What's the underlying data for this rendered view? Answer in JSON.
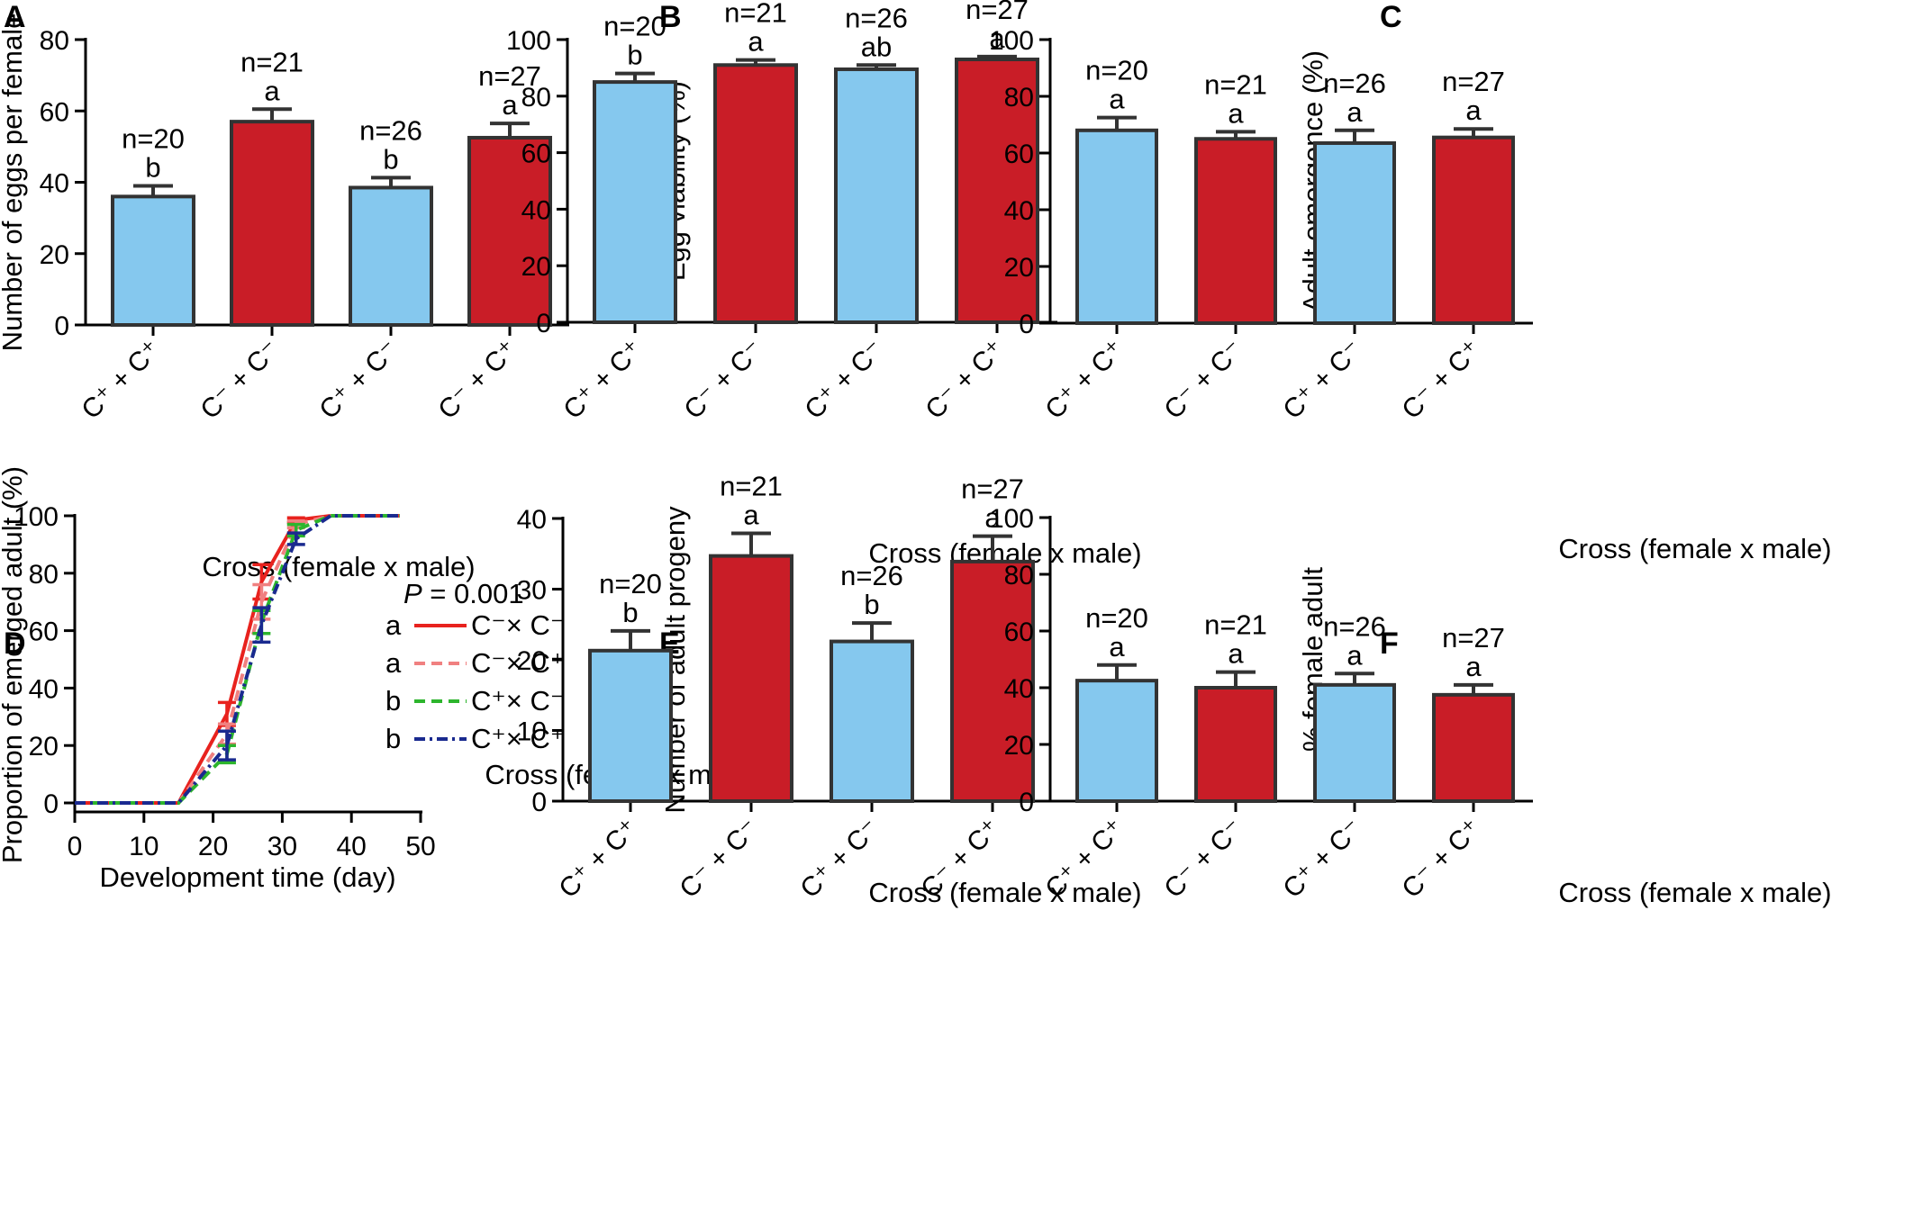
{
  "colors": {
    "blue": "#85C8EE",
    "red": "#C91D27",
    "series_a": "#E8221E",
    "series_b": "#F08080",
    "series_c": "#2DB52D",
    "series_d": "#1A2A8F"
  },
  "chart_data": [
    {
      "panel": "A",
      "type": "bar",
      "ylabel": "Number of eggs per female",
      "xlabel": "Cross (female x male)",
      "ylim": [
        0,
        80
      ],
      "yticks": [
        0,
        20,
        40,
        60,
        80
      ],
      "categories": [
        "C⁺ + C⁺",
        "C⁻ + C⁻",
        "C⁺ + C⁻",
        "C⁻ + C⁺"
      ],
      "values": [
        36,
        57,
        38.5,
        52.5
      ],
      "errors": [
        3,
        3.5,
        2.8,
        4
      ],
      "n_labels": [
        "n=20",
        "n=21",
        "n=26",
        "n=27"
      ],
      "letters": [
        "b",
        "a",
        "b",
        "a"
      ],
      "bar_colors": [
        "blue",
        "red",
        "blue",
        "red"
      ]
    },
    {
      "panel": "B",
      "type": "bar",
      "ylabel": "Egg viability (%)",
      "xlabel": "Cross (female x male)",
      "ylim": [
        0,
        100
      ],
      "yticks": [
        0,
        20,
        40,
        60,
        80,
        100
      ],
      "categories": [
        "C⁺ + C⁺",
        "C⁻ + C⁻",
        "C⁺ + C⁻",
        "C⁻ + C⁺"
      ],
      "values": [
        85,
        91,
        89.5,
        93
      ],
      "errors": [
        3,
        1.8,
        1.5,
        1
      ],
      "n_labels": [
        "n=20",
        "n=21",
        "n=26",
        "n=27"
      ],
      "letters": [
        "b",
        "a",
        "ab",
        "a"
      ],
      "bar_colors": [
        "blue",
        "red",
        "blue",
        "red"
      ]
    },
    {
      "panel": "C",
      "type": "bar",
      "ylabel": "Adult emergence (%)",
      "xlabel": "Cross (female x male)",
      "ylim": [
        0,
        100
      ],
      "yticks": [
        0,
        20,
        40,
        60,
        80,
        100
      ],
      "categories": [
        "C⁺ + C⁺",
        "C⁻ + C⁻",
        "C⁺ + C⁻",
        "C⁻ + C⁺"
      ],
      "values": [
        68,
        65,
        63.5,
        65.5
      ],
      "errors": [
        4.5,
        2.5,
        4.5,
        3
      ],
      "n_labels": [
        "n=20",
        "n=21",
        "n=26",
        "n=27"
      ],
      "letters": [
        "a",
        "a",
        "a",
        "a"
      ],
      "bar_colors": [
        "blue",
        "red",
        "blue",
        "red"
      ]
    },
    {
      "panel": "D",
      "type": "line",
      "ylabel": "Proportion of emerged adult (%)",
      "xlabel": "Development time (day)",
      "xlim": [
        0,
        50
      ],
      "ylim": [
        0,
        100
      ],
      "xticks": [
        0,
        10,
        20,
        30,
        40,
        50
      ],
      "yticks": [
        0,
        20,
        40,
        60,
        80,
        100
      ],
      "annotation": "P = 0.001",
      "annotation_p": "P",
      "annotation_rest": "= 0.001",
      "legend_title": "Cross (female x male)",
      "series": [
        {
          "name": "C⁻× C⁻",
          "letter": "a",
          "color": "series_a",
          "dash": "solid",
          "x": [
            0,
            15,
            22,
            27,
            32,
            37,
            47
          ],
          "y": [
            0,
            0,
            31,
            77,
            98.5,
            100,
            100
          ],
          "err": [
            0,
            0,
            4,
            6,
            0.8,
            0,
            0
          ]
        },
        {
          "name": "C⁻× C⁺",
          "letter": "a",
          "color": "series_b",
          "dash": "dashed",
          "x": [
            0,
            15,
            22,
            27,
            32,
            37,
            47
          ],
          "y": [
            0,
            0,
            24,
            70,
            97,
            100,
            100
          ],
          "err": [
            0,
            0,
            3.5,
            6,
            1.2,
            0,
            0
          ]
        },
        {
          "name": "C⁺× C⁻",
          "letter": "b",
          "color": "series_c",
          "dash": "dashed",
          "x": [
            0,
            15,
            22,
            27,
            32,
            37,
            47
          ],
          "y": [
            0,
            0,
            17,
            63,
            95,
            100,
            100
          ],
          "err": [
            0,
            0,
            3,
            4,
            2,
            0,
            0
          ]
        },
        {
          "name": "C⁺× C⁺",
          "letter": "b",
          "color": "series_d",
          "dash": "dashdot",
          "x": [
            0,
            15,
            22,
            27,
            32,
            37,
            47
          ],
          "y": [
            0,
            0,
            20,
            62,
            92,
            100,
            100
          ],
          "err": [
            0,
            0,
            5,
            6,
            2,
            0,
            0
          ]
        }
      ]
    },
    {
      "panel": "E",
      "type": "bar",
      "ylabel": "Number of adult progeny",
      "xlabel": "Cross (female x male)",
      "ylim": [
        0,
        40
      ],
      "yticks": [
        0,
        10,
        20,
        30,
        40
      ],
      "categories": [
        "C⁺ + C⁺",
        "C⁻ + C⁻",
        "C⁺ + C⁻",
        "C⁻ + C⁺"
      ],
      "values": [
        21.3,
        34.7,
        22.6,
        33.9
      ],
      "errors": [
        2.8,
        3.2,
        2.6,
        3.6
      ],
      "n_labels": [
        "n=20",
        "n=21",
        "n=26",
        "n=27"
      ],
      "letters": [
        "b",
        "a",
        "b",
        "a"
      ],
      "bar_colors": [
        "blue",
        "red",
        "blue",
        "red"
      ]
    },
    {
      "panel": "F",
      "type": "bar",
      "ylabel": "% female adult",
      "xlabel": "Cross (female x male)",
      "ylim": [
        0,
        100
      ],
      "yticks": [
        0,
        20,
        40,
        60,
        80,
        100
      ],
      "categories": [
        "C⁺ + C⁺",
        "C⁻ + C⁻",
        "C⁺ + C⁻",
        "C⁻ + C⁺"
      ],
      "values": [
        42.5,
        40,
        41,
        37.5
      ],
      "errors": [
        5.5,
        5.5,
        4,
        3.5
      ],
      "n_labels": [
        "n=20",
        "n=21",
        "n=26",
        "n=27"
      ],
      "letters": [
        "a",
        "a",
        "a",
        "a"
      ],
      "bar_colors": [
        "blue",
        "red",
        "blue",
        "red"
      ]
    }
  ]
}
